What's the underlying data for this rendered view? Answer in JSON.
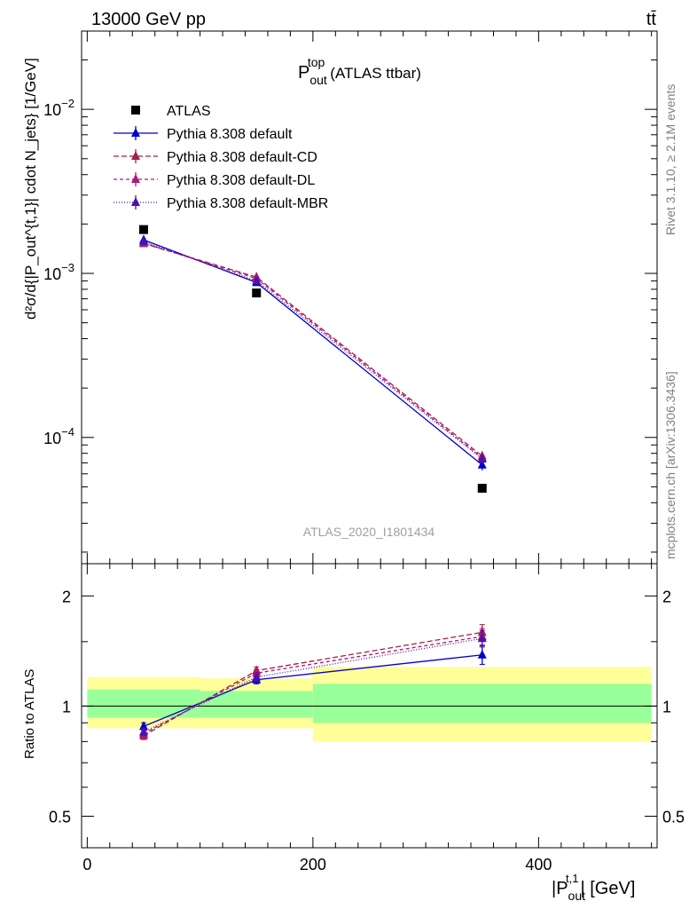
{
  "header": {
    "energy_label": "13000 GeV pp",
    "process_label": "tt̄"
  },
  "side_labels": {
    "rivet": "Rivet 3.1.10, ≥ 2.1M events",
    "mcplots": "mcplots.cern.ch [arXiv:1306.3436]"
  },
  "chart_data": [
    {
      "type": "line",
      "panel": "main",
      "title": "P_out^top (ATLAS ttbar)",
      "title_main": "P",
      "title_sup": "top",
      "title_sub": "out",
      "title_rest": "(ATLAS ttbar)",
      "ylabel": "d²σ/d{|P_out^{t,1}| cdot N_jets} [1/GeV]",
      "y_scale": "log",
      "ylim": [
        1.7e-05,
        0.03
      ],
      "xlim": [
        -5,
        505
      ],
      "y_ticks": [
        {
          "value": 0.01,
          "base": "10",
          "exp": "−2"
        },
        {
          "value": 0.001,
          "base": "10",
          "exp": "−3"
        },
        {
          "value": 0.0001,
          "base": "10",
          "exp": "−4"
        }
      ],
      "watermark": "ATLAS_2020_I1801434",
      "legend_position": "top-left",
      "x": [
        50,
        150,
        350
      ],
      "series": [
        {
          "name": "ATLAS",
          "kind": "data",
          "color": "#000000",
          "values": [
            0.00185,
            0.00076,
            4.9e-05
          ],
          "xerr": [
            50,
            50,
            150
          ]
        },
        {
          "name": "Pythia 8.308 default",
          "kind": "mc",
          "color": "#0000cc",
          "dash": "",
          "values": [
            0.0016,
            0.00088,
            6.8e-05
          ],
          "err": [
            4e-05,
            3e-05,
            5e-06
          ]
        },
        {
          "name": "Pythia 8.308 default-CD",
          "kind": "mc",
          "color": "#a0204a",
          "dash": "6,3",
          "values": [
            0.00152,
            0.00095,
            7.7e-05
          ],
          "err": [
            4e-05,
            3e-05,
            5e-06
          ]
        },
        {
          "name": "Pythia 8.308 default-DL",
          "kind": "mc",
          "color": "#b0187a",
          "dash": "4,3",
          "values": [
            0.00153,
            0.00093,
            7.5e-05
          ],
          "err": [
            4e-05,
            3e-05,
            5e-06
          ]
        },
        {
          "name": "Pythia 8.308 default-MBR",
          "kind": "mc",
          "color": "#5010b0",
          "dash": "1,2",
          "values": [
            0.00156,
            0.0009,
            7.4e-05
          ],
          "err": [
            4e-05,
            3e-05,
            5e-06
          ]
        }
      ]
    },
    {
      "type": "line",
      "panel": "ratio",
      "ylabel": "Ratio to ATLAS",
      "xlabel": "|P_out^{t,1}| [GeV]",
      "xlabel_main": "|P",
      "xlabel_sup": "t,1",
      "xlabel_sub": "out",
      "xlabel_rest": "| [GeV]",
      "y_scale": "log",
      "ylim": [
        0.41,
        2.45
      ],
      "xlim": [
        -5,
        505
      ],
      "y_ticks": [
        {
          "value": 2,
          "label": "2"
        },
        {
          "value": 1,
          "label": "1"
        },
        {
          "value": 0.5,
          "label": "0.5"
        }
      ],
      "x_ticks": [
        {
          "value": 0,
          "label": "0"
        },
        {
          "value": 200,
          "label": "200"
        },
        {
          "value": 400,
          "label": "400"
        }
      ],
      "bands": [
        {
          "x0": 0,
          "x1": 100,
          "yellow": [
            0.87,
            1.2
          ],
          "green": [
            0.93,
            1.11
          ]
        },
        {
          "x0": 100,
          "x1": 200,
          "yellow": [
            0.87,
            1.19
          ],
          "green": [
            0.93,
            1.1
          ]
        },
        {
          "x0": 200,
          "x1": 500,
          "yellow": [
            0.8,
            1.28
          ],
          "green": [
            0.9,
            1.15
          ]
        }
      ],
      "band_colors": {
        "yellow": "#ffff99",
        "green": "#99ff99"
      },
      "x": [
        50,
        150,
        350
      ],
      "series": [
        {
          "name": "Pythia 8.308 default",
          "color": "#0000cc",
          "dash": "",
          "values": [
            0.88,
            1.18,
            1.38
          ],
          "err": [
            0.02,
            0.03,
            0.08
          ]
        },
        {
          "name": "Pythia 8.308 default-CD",
          "color": "#a0204a",
          "dash": "6,3",
          "values": [
            0.83,
            1.25,
            1.59
          ],
          "err": [
            0.02,
            0.03,
            0.08
          ]
        },
        {
          "name": "Pythia 8.308 default-DL",
          "color": "#b0187a",
          "dash": "4,3",
          "values": [
            0.84,
            1.23,
            1.55
          ],
          "err": [
            0.02,
            0.03,
            0.08
          ]
        },
        {
          "name": "Pythia 8.308 default-MBR",
          "color": "#5010b0",
          "dash": "1,2",
          "values": [
            0.85,
            1.2,
            1.53
          ],
          "err": [
            0.02,
            0.03,
            0.08
          ]
        }
      ]
    }
  ]
}
